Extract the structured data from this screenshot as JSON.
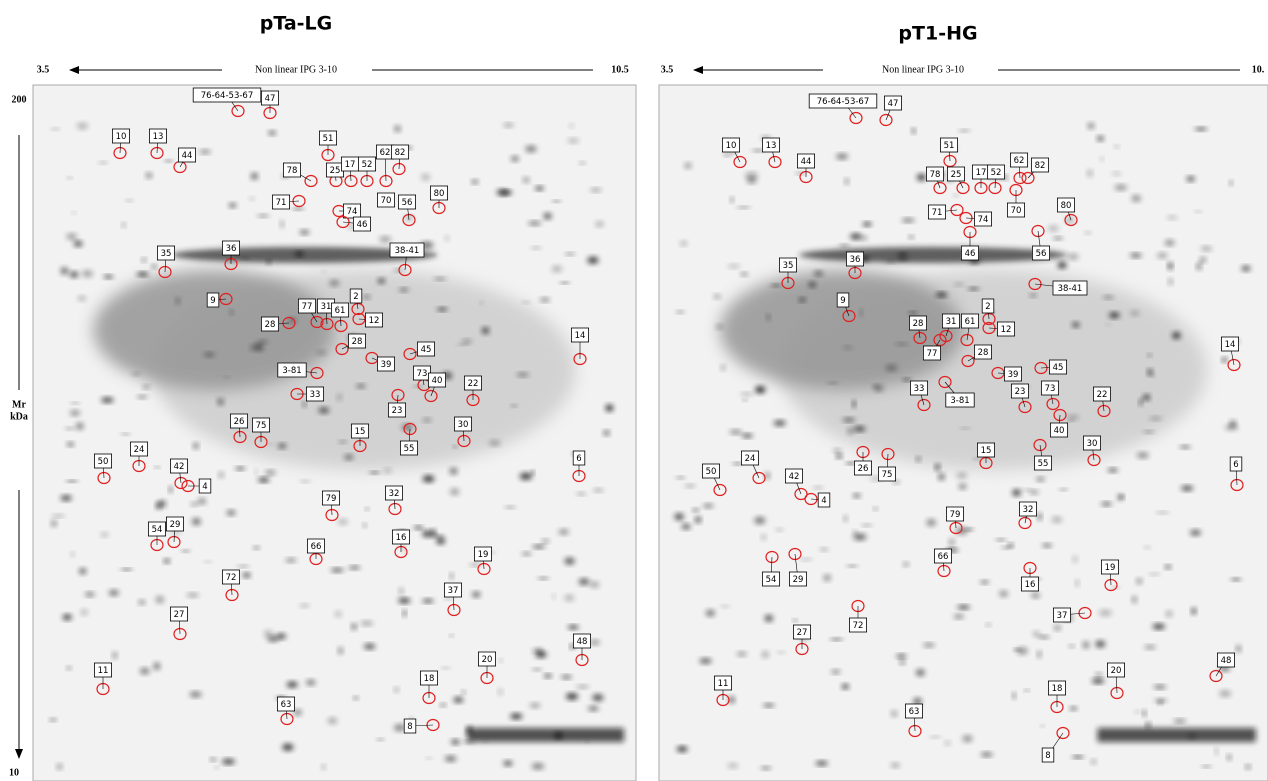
{
  "panels": [
    {
      "title": "pTa-LG",
      "ph_start": "3.5",
      "axis_label": "Non linear IPG 3-10",
      "ph_end": "10.5",
      "spots": [
        "76-64-53-67",
        "47",
        "10",
        "13",
        "44",
        "51",
        "78",
        "25",
        "17",
        "52",
        "62",
        "82",
        "70",
        "80",
        "71",
        "74",
        "46",
        "56",
        "35",
        "36",
        "38-41",
        "9",
        "2",
        "77",
        "31",
        "61",
        "12",
        "28",
        "28",
        "14",
        "45",
        "39",
        "3-81",
        "73",
        "40",
        "22",
        "33",
        "23",
        "26",
        "75",
        "15",
        "55",
        "30",
        "24",
        "50",
        "42",
        "4",
        "6",
        "79",
        "32",
        "54",
        "29",
        "16",
        "66",
        "19",
        "72",
        "37",
        "27",
        "48",
        "11",
        "20",
        "18",
        "63",
        "8"
      ]
    },
    {
      "title": "pT1-HG",
      "ph_start": "3.5",
      "axis_label": "Non linear IPG 3-10",
      "ph_end": "10.",
      "spots": [
        "76-64-53-67",
        "47",
        "10",
        "13",
        "44",
        "51",
        "78",
        "25",
        "17",
        "52",
        "62",
        "82",
        "70",
        "80",
        "71",
        "74",
        "46",
        "56",
        "36",
        "35",
        "38-41",
        "9",
        "2",
        "12",
        "28",
        "31",
        "61",
        "77",
        "28",
        "39",
        "45",
        "14",
        "33",
        "3-81",
        "73",
        "23",
        "22",
        "40",
        "15",
        "30",
        "55",
        "26",
        "75",
        "24",
        "50",
        "42",
        "4",
        "6",
        "79",
        "32",
        "54",
        "29",
        "66",
        "16",
        "19",
        "37",
        "72",
        "27",
        "48",
        "11",
        "20",
        "18",
        "63",
        "8"
      ]
    }
  ],
  "mr_axis": {
    "top": "200",
    "label": "Mr",
    "unit": "kDa",
    "bottom": "10"
  }
}
